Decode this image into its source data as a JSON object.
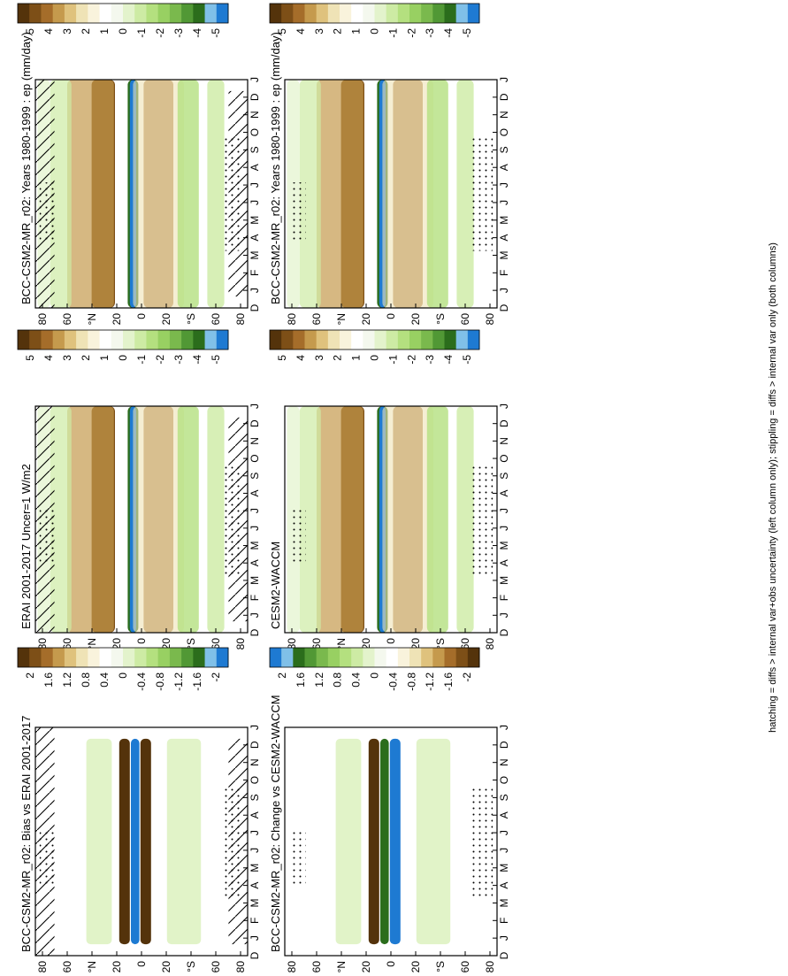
{
  "chart_data": [
    {
      "type": "heatmap",
      "panel": "row1-left",
      "title": "BCC-CSM2-MR_r02: Years 1980-1999 : ep (mm/day)",
      "colorbar_ticks": [
        "5",
        "4",
        "3",
        "2",
        "1",
        "0",
        "-1",
        "-2",
        "-3",
        "-4",
        "-5"
      ],
      "colorbar_range": [
        -5,
        5
      ],
      "colorbar_colors": [
        "#54330b",
        "#7d4f17",
        "#a56d2a",
        "#c59a4d",
        "#dfc27d",
        "#efe3b6",
        "#f9f3dc",
        "#ffffff",
        "#f4f8ee",
        "#e3f3cc",
        "#cdeba4",
        "#b4e07f",
        "#98d062",
        "#7ab94d",
        "#519835",
        "#2b6d1c",
        "#80c0e8",
        "#1e7ad2"
      ],
      "month_ticks": [
        "D",
        "J",
        "F",
        "M",
        "A",
        "M",
        "J",
        "J",
        "A",
        "S",
        "O",
        "N",
        "D",
        "J"
      ],
      "lat_ticks": [
        "80",
        "60",
        "°N",
        "20",
        "0",
        "20",
        "°S",
        "60",
        "80"
      ],
      "hatching": true,
      "stippling": true
    },
    {
      "type": "heatmap",
      "panel": "row1-right",
      "title": "BCC-CSM2-MR_r02: Years 1980-1999 : ep (mm/day)",
      "colorbar_ticks": [
        "5",
        "4",
        "3",
        "2",
        "1",
        "0",
        "-1",
        "-2",
        "-3",
        "-4",
        "-5"
      ],
      "colorbar_range": [
        -5,
        5
      ],
      "month_ticks": [
        "D",
        "J",
        "F",
        "M",
        "A",
        "M",
        "J",
        "J",
        "A",
        "S",
        "O",
        "N",
        "D",
        "J"
      ],
      "lat_ticks": [
        "80",
        "60",
        "°N",
        "20",
        "0",
        "20",
        "°S",
        "60",
        "80"
      ],
      "hatching": false,
      "stippling": true
    },
    {
      "type": "heatmap",
      "panel": "row2-left",
      "title": "ERAI 2001-2017 Uncer=1 W/m2",
      "colorbar_ticks": [
        "5",
        "4",
        "3",
        "2",
        "1",
        "0",
        "-1",
        "-2",
        "-3",
        "-4",
        "-5"
      ],
      "colorbar_range": [
        -5,
        5
      ],
      "month_ticks": [
        "D",
        "J",
        "F",
        "M",
        "A",
        "M",
        "J",
        "J",
        "A",
        "S",
        "O",
        "N",
        "D",
        "J"
      ],
      "lat_ticks": [
        "80",
        "60",
        "°N",
        "20",
        "0",
        "20",
        "°S",
        "60",
        "80"
      ],
      "hatching": true,
      "stippling": true
    },
    {
      "type": "heatmap",
      "panel": "row2-right",
      "title": "CESM2-WACCM",
      "colorbar_ticks": [
        "5",
        "4",
        "3",
        "2",
        "1",
        "0",
        "-1",
        "-2",
        "-3",
        "-4",
        "-5"
      ],
      "colorbar_range": [
        -5,
        5
      ],
      "month_ticks": [
        "D",
        "J",
        "F",
        "M",
        "A",
        "M",
        "J",
        "J",
        "A",
        "S",
        "O",
        "N",
        "D",
        "J"
      ],
      "lat_ticks": [
        "80",
        "60",
        "°N",
        "20",
        "0",
        "20",
        "°S",
        "60",
        "80"
      ],
      "hatching": false,
      "stippling": true
    },
    {
      "type": "heatmap",
      "panel": "row3-left",
      "title": "BCC-CSM2-MR_r02: Bias vs ERAI 2001-2017",
      "colorbar_ticks": [
        "2",
        "1.6",
        "1.2",
        "0.8",
        "0.4",
        "0",
        "-0.4",
        "-0.8",
        "-1.2",
        "-1.6",
        "-2"
      ],
      "colorbar_range": [
        -2,
        2
      ],
      "month_ticks": [
        "D",
        "J",
        "F",
        "M",
        "A",
        "M",
        "J",
        "J",
        "A",
        "S",
        "O",
        "N",
        "D",
        "J"
      ],
      "lat_ticks": [
        "80",
        "60",
        "°N",
        "20",
        "0",
        "20",
        "°S",
        "60",
        "80"
      ],
      "hatching": true,
      "stippling": true
    },
    {
      "type": "heatmap",
      "panel": "row3-right",
      "title": "BCC-CSM2-MR_r02: Change vs CESM2-WACCM",
      "colorbar_ticks": [
        "2",
        "1.6",
        "1.2",
        "0.8",
        "0.4",
        "0",
        "-0.4",
        "-0.8",
        "-1.2",
        "-1.6",
        "-2"
      ],
      "colorbar_range": [
        -2,
        2
      ],
      "colorbar_reversed": true,
      "month_ticks": [
        "D",
        "J",
        "F",
        "M",
        "A",
        "M",
        "J",
        "J",
        "A",
        "S",
        "O",
        "N",
        "D",
        "J"
      ],
      "lat_ticks": [
        "80",
        "60",
        "°N",
        "20",
        "0",
        "20",
        "°S",
        "60",
        "80"
      ],
      "hatching": false,
      "stippling": true
    }
  ],
  "footnote": "hatching = diffs > internal var+obs uncertainty (left column only); stippling = diffs > internal var only (both columns)"
}
